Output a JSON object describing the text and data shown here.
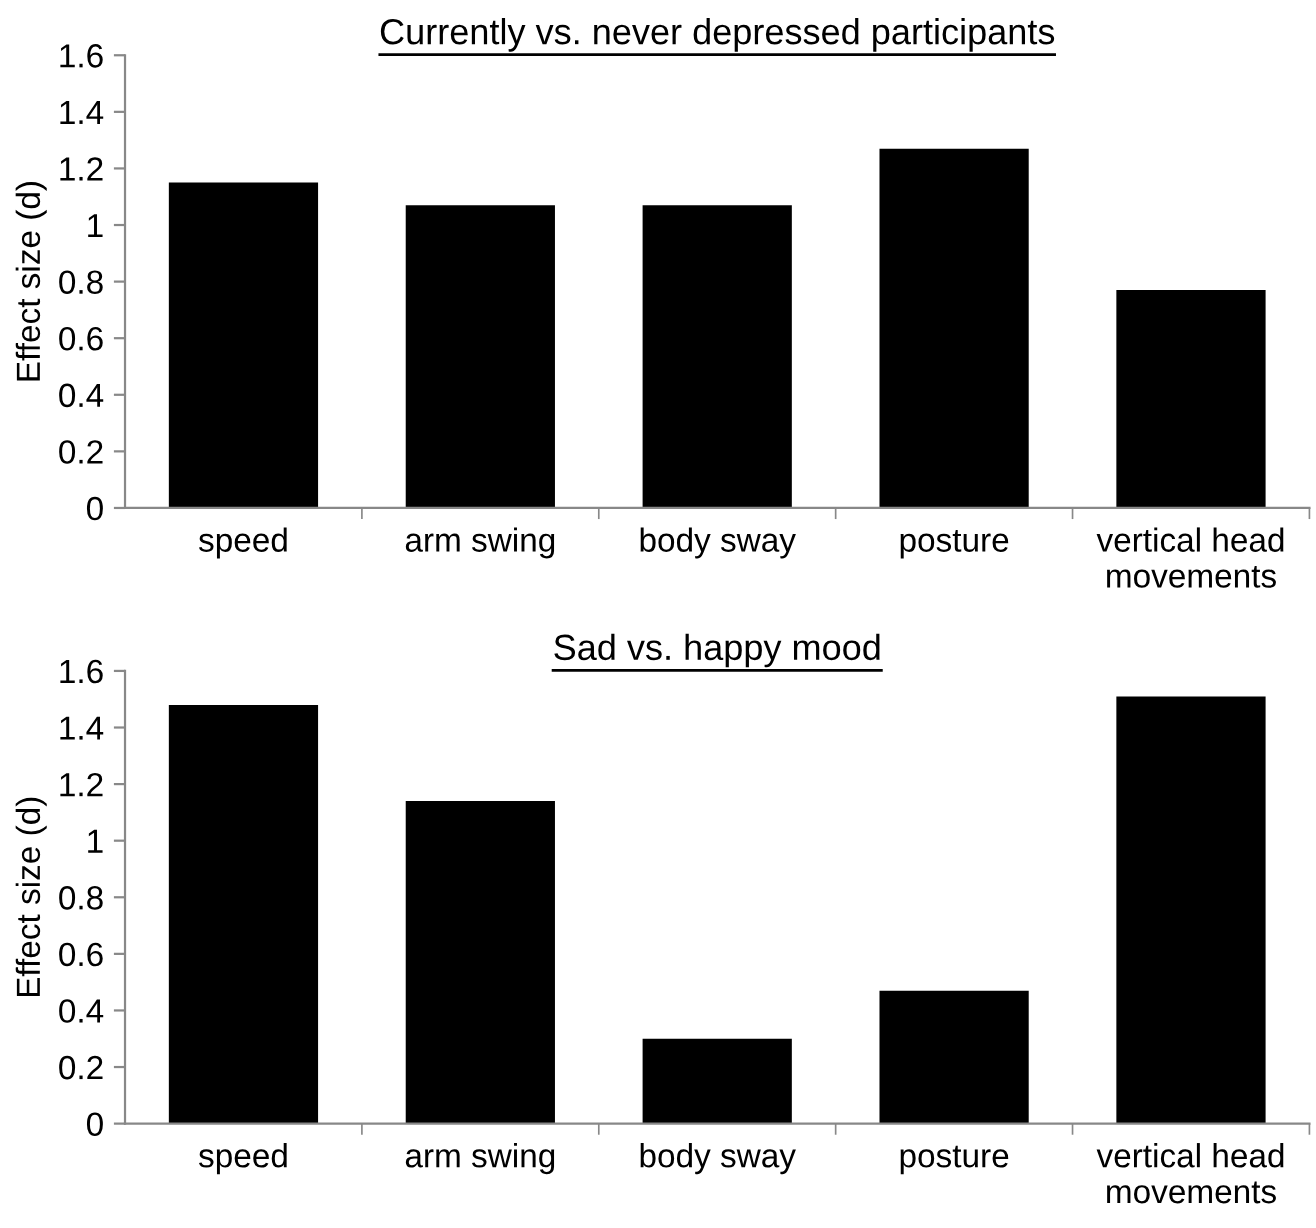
{
  "chart_data": [
    {
      "type": "bar",
      "title": "Currently vs. never depressed participants",
      "ylabel": "Effect size (d)",
      "categories": [
        "speed",
        "arm swing",
        "body sway",
        "posture",
        "vertical head\nmovements"
      ],
      "values": [
        1.15,
        1.07,
        1.07,
        1.27,
        0.77
      ],
      "color": "#000000",
      "ylim": [
        0,
        1.6
      ],
      "yticks": [
        0,
        0.2,
        0.4,
        0.6,
        0.8,
        1,
        1.2,
        1.4,
        1.6
      ],
      "grid": false
    },
    {
      "type": "bar",
      "title": "Sad vs. happy mood",
      "ylabel": "Effect size (d)",
      "categories": [
        "speed",
        "arm swing",
        "body sway",
        "posture",
        "vertical head\nmovements"
      ],
      "values": [
        1.48,
        1.14,
        0.3,
        0.47,
        1.51
      ],
      "color": "#000000",
      "ylim": [
        0,
        1.6
      ],
      "yticks": [
        0,
        0.2,
        0.4,
        0.6,
        0.8,
        1,
        1.2,
        1.4,
        1.6
      ],
      "grid": false
    }
  ]
}
